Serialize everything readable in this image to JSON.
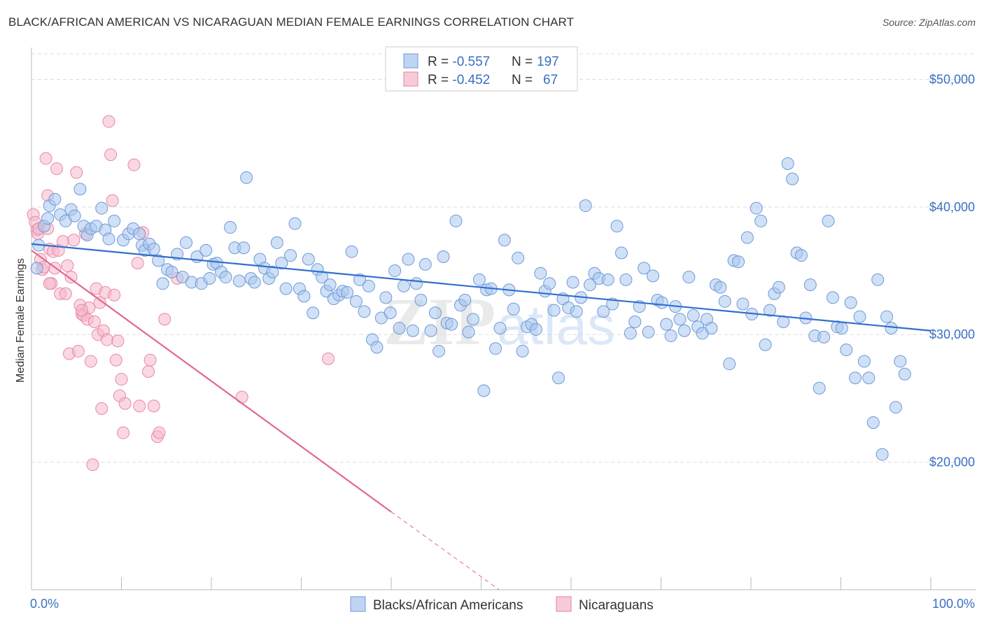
{
  "title": "BLACK/AFRICAN AMERICAN VS NICARAGUAN MEDIAN FEMALE EARNINGS CORRELATION CHART",
  "source": "Source: ZipAtlas.com",
  "watermark": {
    "zip": "ZIP",
    "atlas": "atlas"
  },
  "colors": {
    "blue": "#3a6fc4",
    "blue_fill": "#a9c6ee",
    "blue_line": "#2f6fce",
    "pink_fill": "#f6b8cb",
    "pink_line": "#e2698f",
    "grid": "#dddddd"
  },
  "legend": {
    "rows": [
      {
        "r_label": "R = ",
        "r_value": "-0.557",
        "n_label": "N = ",
        "n_value": "197"
      },
      {
        "r_label": "R = ",
        "r_value": "-0.452",
        "n_label": "N = ",
        "n_value": "67"
      }
    ]
  },
  "bottom_legend": [
    "Blacks/African Americans",
    "Nicaraguans"
  ],
  "chart_data": {
    "type": "scatter",
    "title": "BLACK/AFRICAN AMERICAN VS NICARAGUAN MEDIAN FEMALE EARNINGS CORRELATION CHART",
    "xlabel": "",
    "ylabel": "Median Female Earnings",
    "xlim": [
      0,
      100
    ],
    "ylim": [
      10000,
      52000
    ],
    "x_tick_labels": [
      "0.0%",
      "100.0%"
    ],
    "y_ticks": [
      20000,
      30000,
      40000,
      50000
    ],
    "y_tick_labels": [
      "$20,000",
      "$30,000",
      "$40,000",
      "$50,000"
    ],
    "grid": true,
    "legend_position": "top-center",
    "series": [
      {
        "name": "Blacks/African Americans",
        "R": -0.557,
        "N": 197,
        "trend": {
          "x": [
            0,
            100
          ],
          "y": [
            37100,
            30300
          ]
        },
        "points": [
          [
            0.6,
            35200
          ],
          [
            0.8,
            37000
          ],
          [
            1.4,
            38500
          ],
          [
            1.8,
            39100
          ],
          [
            2,
            40100
          ],
          [
            2.6,
            40600
          ],
          [
            3.2,
            39400
          ],
          [
            3.8,
            38900
          ],
          [
            4.4,
            39800
          ],
          [
            4.8,
            39300
          ],
          [
            5.4,
            41400
          ],
          [
            5.8,
            38500
          ],
          [
            6.2,
            37800
          ],
          [
            6.6,
            38300
          ],
          [
            7.2,
            38500
          ],
          [
            7.8,
            39900
          ],
          [
            8.2,
            38200
          ],
          [
            8.6,
            37500
          ],
          [
            9.2,
            38900
          ],
          [
            10.2,
            37400
          ],
          [
            10.8,
            37900
          ],
          [
            11.3,
            38300
          ],
          [
            12,
            37900
          ],
          [
            12.3,
            37000
          ],
          [
            12.6,
            36600
          ],
          [
            13.1,
            37100
          ],
          [
            13.6,
            36700
          ],
          [
            14.1,
            35800
          ],
          [
            14.6,
            34000
          ],
          [
            15.1,
            35100
          ],
          [
            15.6,
            34900
          ],
          [
            16.2,
            36300
          ],
          [
            16.8,
            34500
          ],
          [
            17.2,
            37200
          ],
          [
            17.8,
            34100
          ],
          [
            18.4,
            36100
          ],
          [
            18.9,
            34000
          ],
          [
            19.4,
            36600
          ],
          [
            19.8,
            34400
          ],
          [
            20.2,
            35500
          ],
          [
            20.6,
            35600
          ],
          [
            21.1,
            34900
          ],
          [
            21.6,
            34500
          ],
          [
            22.1,
            38400
          ],
          [
            22.6,
            36800
          ],
          [
            23.1,
            34200
          ],
          [
            23.6,
            36800
          ],
          [
            23.9,
            42300
          ],
          [
            24.4,
            34400
          ],
          [
            24.8,
            34100
          ],
          [
            25.4,
            35900
          ],
          [
            25.9,
            35200
          ],
          [
            26.4,
            34400
          ],
          [
            26.8,
            34900
          ],
          [
            27.3,
            37200
          ],
          [
            27.8,
            35600
          ],
          [
            28.3,
            33600
          ],
          [
            28.8,
            36200
          ],
          [
            29.3,
            38700
          ],
          [
            29.8,
            33600
          ],
          [
            30.3,
            33000
          ],
          [
            30.8,
            35900
          ],
          [
            31.3,
            31700
          ],
          [
            31.8,
            35100
          ],
          [
            32.3,
            34500
          ],
          [
            32.8,
            33400
          ],
          [
            33.2,
            33900
          ],
          [
            33.6,
            32800
          ],
          [
            34.2,
            33100
          ],
          [
            34.6,
            33400
          ],
          [
            35.1,
            33300
          ],
          [
            35.6,
            36500
          ],
          [
            36.1,
            32600
          ],
          [
            36.5,
            34300
          ],
          [
            37,
            31800
          ],
          [
            37.5,
            33800
          ],
          [
            37.9,
            29600
          ],
          [
            38.4,
            29000
          ],
          [
            38.9,
            31300
          ],
          [
            39.4,
            32900
          ],
          [
            39.9,
            31700
          ],
          [
            40.4,
            35000
          ],
          [
            40.9,
            30500
          ],
          [
            41.4,
            33800
          ],
          [
            41.9,
            35900
          ],
          [
            42.4,
            30300
          ],
          [
            42.8,
            34000
          ],
          [
            43.3,
            32700
          ],
          [
            43.8,
            35500
          ],
          [
            44.4,
            30300
          ],
          [
            44.9,
            31700
          ],
          [
            45.3,
            28700
          ],
          [
            45.8,
            36100
          ],
          [
            46.2,
            30900
          ],
          [
            46.7,
            30800
          ],
          [
            47.2,
            38900
          ],
          [
            47.7,
            32300
          ],
          [
            48.2,
            32700
          ],
          [
            48.6,
            30200
          ],
          [
            49.1,
            31200
          ],
          [
            49.8,
            34300
          ],
          [
            50.3,
            25600
          ],
          [
            50.6,
            33500
          ],
          [
            51.1,
            33600
          ],
          [
            51.6,
            28900
          ],
          [
            52.1,
            30500
          ],
          [
            52.6,
            37400
          ],
          [
            53.1,
            33500
          ],
          [
            53.6,
            32000
          ],
          [
            54.1,
            36000
          ],
          [
            54.6,
            28700
          ],
          [
            55.1,
            30600
          ],
          [
            55.6,
            30800
          ],
          [
            56.1,
            30400
          ],
          [
            56.6,
            34800
          ],
          [
            57.1,
            33400
          ],
          [
            57.6,
            34000
          ],
          [
            58.1,
            31900
          ],
          [
            58.6,
            26600
          ],
          [
            59.1,
            32800
          ],
          [
            59.7,
            32100
          ],
          [
            60.2,
            34100
          ],
          [
            60.6,
            31800
          ],
          [
            61.1,
            32900
          ],
          [
            61.6,
            40100
          ],
          [
            62.1,
            33900
          ],
          [
            62.6,
            34800
          ],
          [
            63.1,
            34400
          ],
          [
            63.6,
            31800
          ],
          [
            64.1,
            34300
          ],
          [
            64.6,
            32400
          ],
          [
            65.1,
            38500
          ],
          [
            65.6,
            36400
          ],
          [
            66.1,
            34300
          ],
          [
            66.6,
            30100
          ],
          [
            67.1,
            31000
          ],
          [
            67.6,
            32200
          ],
          [
            68.1,
            35200
          ],
          [
            68.6,
            30200
          ],
          [
            69.1,
            34600
          ],
          [
            69.6,
            32700
          ],
          [
            70.1,
            32500
          ],
          [
            70.6,
            30800
          ],
          [
            71.1,
            29900
          ],
          [
            71.6,
            32200
          ],
          [
            72.1,
            31200
          ],
          [
            72.6,
            30300
          ],
          [
            73.1,
            34500
          ],
          [
            73.6,
            31500
          ],
          [
            74.1,
            30600
          ],
          [
            74.6,
            30100
          ],
          [
            75.1,
            31200
          ],
          [
            75.6,
            30500
          ],
          [
            76.1,
            33900
          ],
          [
            76.6,
            33700
          ],
          [
            77.1,
            32600
          ],
          [
            77.6,
            27700
          ],
          [
            78.1,
            35800
          ],
          [
            78.6,
            35700
          ],
          [
            79.1,
            32400
          ],
          [
            79.6,
            37600
          ],
          [
            80.1,
            31600
          ],
          [
            80.6,
            39900
          ],
          [
            81.1,
            38900
          ],
          [
            81.6,
            29200
          ],
          [
            82.1,
            31900
          ],
          [
            82.6,
            33200
          ],
          [
            83.1,
            33700
          ],
          [
            83.6,
            31000
          ],
          [
            84.1,
            43400
          ],
          [
            84.6,
            42200
          ],
          [
            85.1,
            36400
          ],
          [
            85.6,
            36200
          ],
          [
            86.1,
            31300
          ],
          [
            86.6,
            33900
          ],
          [
            87.1,
            29900
          ],
          [
            87.6,
            25800
          ],
          [
            88.1,
            29800
          ],
          [
            88.6,
            38900
          ],
          [
            89.1,
            32900
          ],
          [
            89.6,
            30600
          ],
          [
            90.1,
            30500
          ],
          [
            90.6,
            28800
          ],
          [
            91.1,
            32500
          ],
          [
            91.6,
            26600
          ],
          [
            92.1,
            31400
          ],
          [
            92.6,
            27900
          ],
          [
            93.1,
            26600
          ],
          [
            93.6,
            23100
          ],
          [
            94.1,
            34300
          ],
          [
            94.6,
            20600
          ],
          [
            95.1,
            31400
          ],
          [
            95.6,
            30500
          ],
          [
            96.1,
            24300
          ],
          [
            96.6,
            27900
          ],
          [
            97.1,
            26900
          ]
        ]
      },
      {
        "name": "Nicaraguans",
        "R": -0.452,
        "N": 67,
        "trend": {
          "x": [
            0,
            40
          ],
          "y": [
            36600,
            16100
          ]
        },
        "trend_dashed": {
          "x": [
            40,
            52
          ],
          "y": [
            16100,
            10000
          ]
        },
        "points": [
          [
            0.2,
            39400
          ],
          [
            0.4,
            38800
          ],
          [
            0.6,
            38200
          ],
          [
            0.7,
            37900
          ],
          [
            0.8,
            38300
          ],
          [
            1.0,
            35900
          ],
          [
            1.2,
            35100
          ],
          [
            1.4,
            35300
          ],
          [
            1.6,
            43800
          ],
          [
            1.8,
            40900
          ],
          [
            2.0,
            36700
          ],
          [
            2.2,
            34000
          ],
          [
            2.4,
            36500
          ],
          [
            2.6,
            35200
          ],
          [
            2.8,
            43000
          ],
          [
            3.0,
            36600
          ],
          [
            3.2,
            33200
          ],
          [
            3.5,
            37300
          ],
          [
            3.8,
            33200
          ],
          [
            4.0,
            35400
          ],
          [
            4.2,
            28500
          ],
          [
            4.4,
            34500
          ],
          [
            4.7,
            37400
          ],
          [
            5.0,
            42700
          ],
          [
            5.2,
            28700
          ],
          [
            5.4,
            32300
          ],
          [
            5.6,
            31600
          ],
          [
            5.8,
            31500
          ],
          [
            6.0,
            37900
          ],
          [
            6.2,
            31200
          ],
          [
            6.4,
            32100
          ],
          [
            6.6,
            27900
          ],
          [
            6.8,
            19800
          ],
          [
            7.0,
            31000
          ],
          [
            7.2,
            33600
          ],
          [
            7.4,
            30000
          ],
          [
            7.6,
            32500
          ],
          [
            7.8,
            24200
          ],
          [
            8.0,
            30300
          ],
          [
            8.2,
            33300
          ],
          [
            8.4,
            29600
          ],
          [
            8.6,
            46700
          ],
          [
            8.8,
            44100
          ],
          [
            9.0,
            40500
          ],
          [
            9.2,
            33100
          ],
          [
            9.4,
            28000
          ],
          [
            9.6,
            29500
          ],
          [
            9.8,
            25200
          ],
          [
            10.0,
            26500
          ],
          [
            10.2,
            22300
          ],
          [
            10.4,
            24600
          ],
          [
            11.4,
            43300
          ],
          [
            11.8,
            35600
          ],
          [
            12.0,
            24400
          ],
          [
            12.4,
            38000
          ],
          [
            13.0,
            27100
          ],
          [
            13.2,
            28000
          ],
          [
            13.6,
            24400
          ],
          [
            14.0,
            22000
          ],
          [
            14.2,
            22300
          ],
          [
            14.8,
            31200
          ],
          [
            16.2,
            34400
          ],
          [
            23.4,
            25100
          ],
          [
            33.0,
            28100
          ],
          [
            2.0,
            34000
          ],
          [
            5.6,
            31900
          ],
          [
            1.8,
            38300
          ]
        ]
      }
    ]
  }
}
